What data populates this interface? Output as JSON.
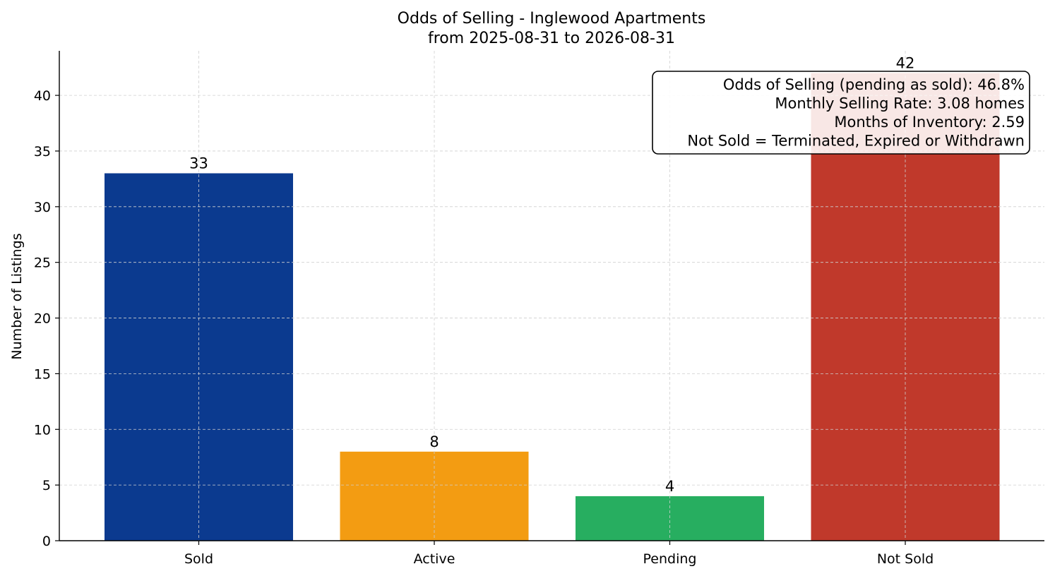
{
  "chart_data": {
    "type": "bar",
    "title": "Odds of Selling - Inglewood Apartments",
    "subtitle": "from 2025-08-31 to 2026-08-31",
    "xlabel": "",
    "ylabel": "Number of Listings",
    "categories": [
      "Sold",
      "Active",
      "Pending",
      "Not Sold"
    ],
    "values": [
      33,
      8,
      4,
      42
    ],
    "colors": [
      "#0b3a8f",
      "#f39c12",
      "#27ae60",
      "#c0392b"
    ],
    "ylim": [
      0,
      44
    ],
    "yticks": [
      0,
      5,
      10,
      15,
      20,
      25,
      30,
      35,
      40
    ],
    "grid": true,
    "annotation": {
      "placement": "top-right",
      "lines": [
        "Odds of Selling (pending as sold): 46.8%",
        "Monthly Selling Rate: 3.08 homes",
        "Months of Inventory: 2.59",
        "Not Sold = Terminated, Expired or Withdrawn"
      ]
    }
  }
}
